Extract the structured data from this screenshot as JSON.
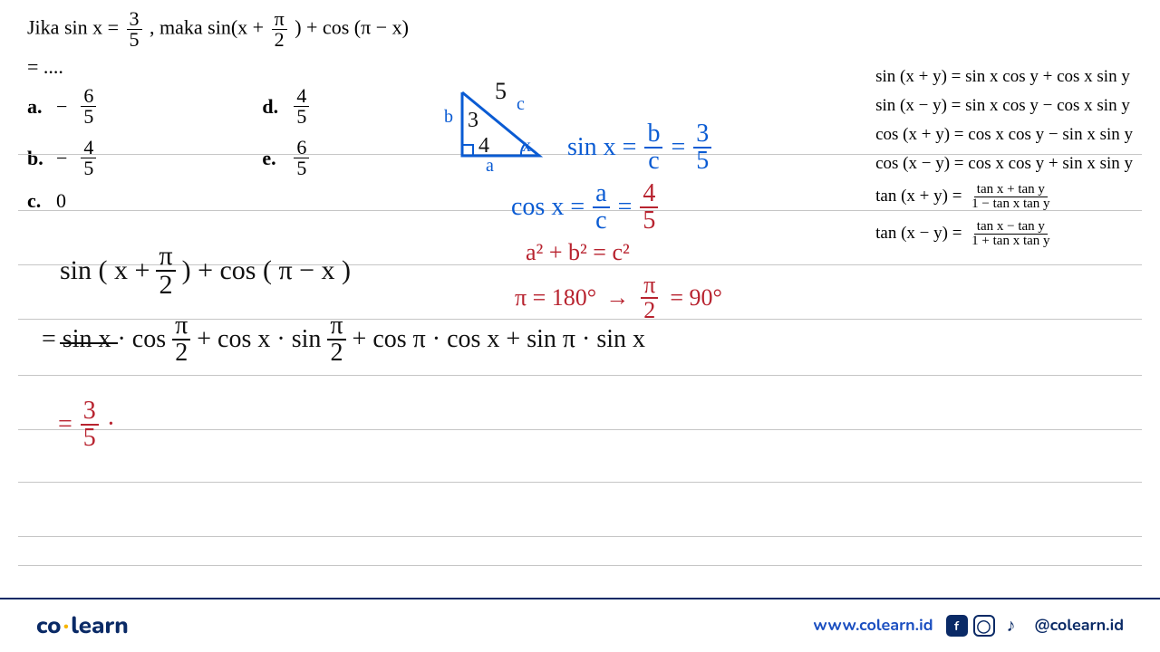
{
  "colors": {
    "blue": "#0a5bd3",
    "red": "#b8232f",
    "black": "#111111",
    "rule": "#c6c6c6",
    "brand_navy": "#0a2a66",
    "brand_link": "#1a4ec0",
    "brand_accent": "#f7b500"
  },
  "problem": {
    "line1_prefix": "Jika sin x = ",
    "line1_frac_num": "3",
    "line1_frac_den": "5",
    "line1_mid": ", maka sin(x + ",
    "line1_frac2_num": "π",
    "line1_frac2_den": "2",
    "line1_suffix": " ) + cos (π − x)",
    "line2": "= ....",
    "choices": {
      "a": {
        "num": "6",
        "den": "5",
        "neg": true
      },
      "b": {
        "num": "4",
        "den": "5",
        "neg": true
      },
      "c": {
        "plain": "0"
      },
      "d": {
        "num": "4",
        "den": "5",
        "neg": false
      },
      "e": {
        "num": "6",
        "den": "5",
        "neg": false
      }
    }
  },
  "formulas": {
    "sin_plus": "sin (x + y) = sin x cos y + cos x sin y",
    "sin_minus": "sin (x − y) = sin x cos y − cos x sin y",
    "cos_plus": "cos (x + y) = cos x cos y − sin x sin y",
    "cos_minus": "cos (x − y) = cos x cos y + sin x sin y",
    "tan_plus_lhs": "tan (x + y) = ",
    "tan_plus_num": "tan x + tan y",
    "tan_plus_den": "1 − tan x tan y",
    "tan_minus_lhs": "tan (x − y) = ",
    "tan_minus_num": "tan x − tan y",
    "tan_minus_den": "1 + tan x tan y"
  },
  "annotations": {
    "triangle": {
      "a_label": "a",
      "b_label": "b",
      "c_label": "c",
      "a_val": "4",
      "b_val": "3",
      "c_val": "5",
      "x_label": "x"
    },
    "sinx_lhs": "sin x = ",
    "sinx_r1_num": "b",
    "sinx_r1_den": "c",
    "sinx_r2_num": "3",
    "sinx_r2_den": "5",
    "cosx_lhs": "cos x = ",
    "cosx_r1_num": "a",
    "cosx_r1_den": "c",
    "cosx_r2_num": "4",
    "cosx_r2_den": "5",
    "pythag": "a² + b² = c²",
    "pi_line_l": "π = 180°",
    "pi_arrow": "→",
    "pi_line_r_num": "π",
    "pi_line_r_den": "2",
    "pi_line_r_suffix": " = 90°",
    "work_line1": "sin ( x + π⁄₂ ) + cos ( π − x )",
    "work_line2_lhs": "= sin x · cos",
    "work_line2_f1_num": "π",
    "work_line2_f1_den": "2",
    "work_line2_mid1": " + cos x · sin",
    "work_line2_f2_num": "π",
    "work_line2_f2_den": "2",
    "work_line2_mid2": "  + cos π · cos x  + sin π · sin x",
    "work_line3_eq": "= ",
    "work_line3_num": "3",
    "work_line3_den": "5",
    "work_line3_dot": "·",
    "underline1": true
  },
  "ruled_line_tops": [
    0,
    62,
    122,
    182,
    244,
    304,
    362,
    422,
    454
  ],
  "footer": {
    "logo_co": "co",
    "logo_learn": "learn",
    "url": "www.colearn.id",
    "handle": "@colearn.id",
    "icons": [
      "f",
      "◯",
      "♪"
    ]
  }
}
